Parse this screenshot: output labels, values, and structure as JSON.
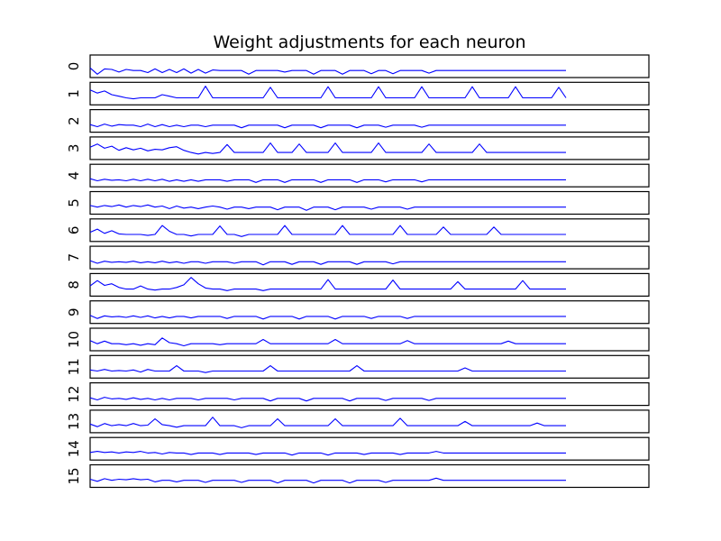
{
  "chart_data": {
    "type": "line",
    "title": "Weight adjustments for each neuron",
    "xlabel": "",
    "ylabel": "",
    "layout": "stacked small multiples",
    "grid": false,
    "line_color": "#0000ff",
    "x_range": [
      0,
      528
    ],
    "x_limit": [
      0,
      620
    ],
    "y_range": [
      -1,
      2.6
    ],
    "x": [
      0,
      8,
      16,
      24,
      32,
      40,
      48,
      56,
      64,
      72,
      80,
      88,
      96,
      104,
      112,
      120,
      128,
      136,
      144,
      152,
      160,
      168,
      176,
      184,
      192,
      200,
      208,
      216,
      224,
      232,
      240,
      248,
      256,
      264,
      272,
      280,
      288,
      296,
      304,
      312,
      320,
      328,
      336,
      344,
      352,
      360,
      368,
      376,
      384,
      392,
      400,
      408,
      416,
      424,
      432,
      440,
      448,
      456,
      464,
      472,
      480,
      488,
      496,
      504,
      512,
      520,
      528
    ],
    "series": [
      {
        "name": "0",
        "values": [
          0.5,
          -0.7,
          0.3,
          0.2,
          -0.3,
          0.2,
          0.0,
          0.0,
          -0.4,
          0.3,
          -0.4,
          0.2,
          -0.4,
          0.3,
          -0.5,
          0.2,
          -0.5,
          0.1,
          0.0,
          0.0,
          0.0,
          0.0,
          -0.7,
          0.0,
          0.0,
          0.0,
          0.0,
          -0.3,
          0.0,
          0.0,
          0.0,
          -0.7,
          0.0,
          0.0,
          0.0,
          -0.7,
          0.0,
          0.0,
          0.0,
          -0.6,
          0.0,
          0.0,
          -0.6,
          0.0,
          0.0,
          0.0,
          0.0,
          -0.5,
          0.0,
          0.0,
          0.0,
          0.0,
          0.0,
          0.0,
          0.0,
          0.0,
          0.0,
          0.0,
          0.0,
          0.0,
          0.0,
          0.0,
          0.0,
          0.0,
          0.0,
          0.0,
          0.0
        ]
      },
      {
        "name": "1",
        "values": [
          1.5,
          0.9,
          1.3,
          0.6,
          0.3,
          0.0,
          -0.2,
          0.0,
          0.0,
          0.0,
          0.6,
          0.3,
          0.0,
          0.0,
          0.0,
          0.0,
          2.2,
          0.0,
          0.0,
          0.0,
          0.0,
          0.0,
          0.0,
          0.0,
          0.0,
          2.0,
          0.0,
          0.0,
          0.0,
          0.0,
          0.0,
          0.0,
          0.0,
          2.1,
          0.0,
          0.0,
          0.0,
          0.0,
          0.0,
          0.0,
          2.1,
          0.0,
          0.0,
          0.0,
          0.0,
          0.0,
          2.1,
          0.0,
          0.0,
          0.0,
          0.0,
          0.0,
          0.0,
          2.1,
          0.0,
          0.0,
          0.0,
          0.0,
          0.0,
          2.1,
          0.0,
          0.0,
          0.0,
          0.0,
          0.0,
          2.0,
          0.0
        ]
      },
      {
        "name": "2",
        "values": [
          0.1,
          -0.3,
          0.2,
          -0.2,
          0.1,
          0.0,
          0.0,
          -0.3,
          0.2,
          -0.3,
          0.1,
          -0.3,
          0.0,
          -0.3,
          0.0,
          0.0,
          -0.3,
          0.0,
          0.0,
          0.0,
          0.0,
          -0.5,
          0.0,
          0.0,
          0.0,
          0.0,
          0.0,
          -0.5,
          0.0,
          0.0,
          0.0,
          0.0,
          -0.5,
          0.0,
          0.0,
          0.0,
          0.0,
          -0.5,
          0.0,
          0.0,
          0.0,
          -0.4,
          0.0,
          0.0,
          0.0,
          0.0,
          -0.4,
          0.0,
          0.0,
          0.0,
          0.0,
          0.0,
          0.0,
          0.0,
          0.0,
          0.0,
          0.0,
          0.0,
          0.0,
          0.0,
          0.0,
          0.0,
          0.0,
          0.0,
          0.0,
          0.0,
          0.0
        ]
      },
      {
        "name": "3",
        "values": [
          1.0,
          1.6,
          0.8,
          1.2,
          0.4,
          0.9,
          0.5,
          0.8,
          0.3,
          0.6,
          0.5,
          0.9,
          1.1,
          0.4,
          0.0,
          -0.3,
          0.0,
          -0.2,
          0.0,
          1.5,
          0.0,
          0.0,
          0.0,
          0.0,
          0.0,
          1.8,
          0.0,
          0.0,
          0.0,
          1.6,
          0.0,
          0.0,
          0.0,
          0.0,
          1.8,
          0.0,
          0.0,
          0.0,
          0.0,
          0.0,
          1.8,
          0.0,
          0.0,
          0.0,
          0.0,
          0.0,
          0.0,
          1.6,
          0.0,
          0.0,
          0.0,
          0.0,
          0.0,
          0.0,
          1.6,
          0.0,
          0.0,
          0.0,
          0.0,
          0.0,
          0.0,
          0.0,
          0.0,
          0.0,
          0.0,
          0.0,
          0.0
        ]
      },
      {
        "name": "4",
        "values": [
          0.2,
          -0.2,
          0.1,
          -0.1,
          0.0,
          -0.2,
          0.1,
          -0.2,
          0.1,
          -0.2,
          0.1,
          -0.3,
          0.0,
          -0.3,
          0.0,
          -0.3,
          0.0,
          0.0,
          0.0,
          -0.3,
          0.0,
          0.0,
          0.0,
          -0.5,
          0.0,
          0.0,
          0.0,
          -0.5,
          0.0,
          0.0,
          0.0,
          0.0,
          -0.5,
          0.0,
          0.0,
          0.0,
          0.0,
          -0.5,
          0.0,
          0.0,
          0.0,
          -0.4,
          0.0,
          0.0,
          0.0,
          0.0,
          -0.4,
          0.0,
          0.0,
          0.0,
          0.0,
          0.0,
          0.0,
          0.0,
          0.0,
          0.0,
          0.0,
          0.0,
          0.0,
          0.0,
          0.0,
          0.0,
          0.0,
          0.0,
          0.0,
          0.0,
          0.0
        ]
      },
      {
        "name": "5",
        "values": [
          0.3,
          0.0,
          0.3,
          0.1,
          0.4,
          0.0,
          0.3,
          0.1,
          0.4,
          0.0,
          0.2,
          -0.3,
          0.2,
          -0.2,
          0.0,
          -0.3,
          0.0,
          0.2,
          0.0,
          -0.4,
          0.0,
          0.0,
          -0.3,
          0.0,
          0.0,
          0.0,
          -0.5,
          0.0,
          0.0,
          0.0,
          -0.6,
          0.0,
          0.0,
          0.0,
          -0.5,
          0.0,
          0.0,
          0.0,
          0.0,
          -0.4,
          0.0,
          0.0,
          0.0,
          0.0,
          -0.4,
          0.0,
          0.0,
          0.0,
          0.0,
          0.0,
          0.0,
          0.0,
          0.0,
          0.0,
          0.0,
          0.0,
          0.0,
          0.0,
          0.0,
          0.0,
          0.0,
          0.0,
          0.0,
          0.0,
          0.0,
          0.0,
          0.0
        ]
      },
      {
        "name": "6",
        "values": [
          0.4,
          1.0,
          0.2,
          0.7,
          0.1,
          0.0,
          0.0,
          0.0,
          -0.2,
          0.0,
          1.7,
          0.6,
          0.0,
          0.0,
          -0.3,
          0.0,
          0.0,
          0.0,
          1.6,
          0.0,
          0.0,
          -0.4,
          0.0,
          0.0,
          0.0,
          0.0,
          0.0,
          1.7,
          0.0,
          0.0,
          0.0,
          0.0,
          0.0,
          0.0,
          0.0,
          1.7,
          0.0,
          0.0,
          0.0,
          0.0,
          0.0,
          0.0,
          0.0,
          1.7,
          0.0,
          0.0,
          0.0,
          0.0,
          0.0,
          1.4,
          0.0,
          0.0,
          0.0,
          0.0,
          0.0,
          0.0,
          1.4,
          0.0,
          0.0,
          0.0,
          0.0,
          0.0,
          0.0,
          0.0,
          0.0,
          0.0,
          0.0
        ]
      },
      {
        "name": "7",
        "values": [
          0.2,
          -0.3,
          0.1,
          -0.1,
          0.0,
          -0.1,
          0.1,
          -0.2,
          0.0,
          -0.2,
          0.1,
          -0.2,
          0.0,
          -0.3,
          0.0,
          0.0,
          -0.3,
          0.0,
          0.0,
          0.0,
          -0.3,
          0.0,
          0.0,
          0.0,
          -0.6,
          0.0,
          0.0,
          0.0,
          -0.5,
          0.0,
          0.0,
          0.0,
          -0.5,
          0.0,
          0.0,
          0.0,
          0.0,
          -0.5,
          0.0,
          0.0,
          0.0,
          0.0,
          -0.4,
          0.0,
          0.0,
          0.0,
          0.0,
          0.0,
          0.0,
          0.0,
          0.0,
          0.0,
          0.0,
          0.0,
          0.0,
          0.0,
          0.0,
          0.0,
          0.0,
          0.0,
          0.0,
          0.0,
          0.0,
          0.0,
          0.0,
          0.0,
          0.0
        ]
      },
      {
        "name": "8",
        "values": [
          0.6,
          1.6,
          0.7,
          1.0,
          0.3,
          0.0,
          0.0,
          0.6,
          0.0,
          -0.2,
          0.0,
          0.0,
          0.3,
          0.8,
          2.2,
          1.0,
          0.2,
          0.0,
          0.0,
          -0.3,
          0.0,
          0.0,
          0.0,
          0.0,
          -0.3,
          0.0,
          0.0,
          0.0,
          0.0,
          0.0,
          0.0,
          0.0,
          0.0,
          1.8,
          0.0,
          0.0,
          0.0,
          0.0,
          0.0,
          0.0,
          0.0,
          0.0,
          1.7,
          0.0,
          0.0,
          0.0,
          0.0,
          0.0,
          0.0,
          0.0,
          0.0,
          1.4,
          0.0,
          0.0,
          0.0,
          0.0,
          0.0,
          0.0,
          0.0,
          0.0,
          1.6,
          0.0,
          0.0,
          0.0,
          0.0,
          0.0,
          0.0
        ]
      },
      {
        "name": "9",
        "values": [
          0.2,
          -0.4,
          0.1,
          -0.1,
          0.0,
          -0.2,
          0.1,
          -0.2,
          0.1,
          -0.3,
          0.0,
          -0.3,
          0.0,
          0.0,
          -0.3,
          0.0,
          0.0,
          0.0,
          0.0,
          -0.4,
          0.0,
          0.0,
          0.0,
          0.0,
          -0.5,
          0.0,
          0.0,
          0.0,
          0.0,
          -0.5,
          0.0,
          0.0,
          0.0,
          0.0,
          -0.5,
          0.0,
          0.0,
          0.0,
          0.0,
          -0.4,
          0.0,
          0.0,
          0.0,
          0.0,
          -0.4,
          0.0,
          0.0,
          0.0,
          0.0,
          0.0,
          0.0,
          0.0,
          0.0,
          0.0,
          0.0,
          0.0,
          0.0,
          0.0,
          0.0,
          0.0,
          0.0,
          0.0,
          0.0,
          0.0,
          0.0,
          0.0,
          0.0
        ]
      },
      {
        "name": "10",
        "values": [
          0.6,
          0.0,
          0.5,
          0.0,
          0.0,
          -0.2,
          0.0,
          -0.3,
          0.0,
          -0.2,
          1.1,
          0.2,
          0.0,
          -0.4,
          0.0,
          0.0,
          0.0,
          0.0,
          -0.2,
          0.0,
          0.0,
          0.0,
          0.0,
          0.0,
          0.8,
          0.0,
          0.0,
          0.0,
          0.0,
          0.0,
          0.0,
          0.0,
          0.0,
          0.0,
          0.8,
          0.0,
          0.0,
          0.0,
          0.0,
          0.0,
          0.0,
          0.0,
          0.0,
          0.0,
          0.6,
          0.0,
          0.0,
          0.0,
          0.0,
          0.0,
          0.0,
          0.0,
          0.0,
          0.0,
          0.0,
          0.0,
          0.0,
          0.0,
          0.5,
          0.0,
          0.0,
          0.0,
          0.0,
          0.0,
          0.0,
          0.0,
          0.0
        ]
      },
      {
        "name": "11",
        "values": [
          0.2,
          0.0,
          0.3,
          0.0,
          0.1,
          0.0,
          0.2,
          -0.2,
          0.3,
          0.0,
          0.0,
          0.0,
          1.0,
          0.0,
          0.0,
          0.0,
          -0.3,
          0.0,
          0.0,
          0.0,
          0.0,
          0.0,
          0.0,
          0.0,
          0.0,
          1.0,
          0.0,
          0.0,
          0.0,
          0.0,
          0.0,
          0.0,
          0.0,
          0.0,
          0.0,
          0.0,
          0.0,
          1.0,
          0.0,
          0.0,
          0.0,
          0.0,
          0.0,
          0.0,
          0.0,
          0.0,
          0.0,
          0.0,
          0.0,
          0.0,
          0.0,
          0.0,
          0.6,
          0.0,
          0.0,
          0.0,
          0.0,
          0.0,
          0.0,
          0.0,
          0.0,
          0.0,
          0.0,
          0.0,
          0.0,
          0.0,
          0.0
        ]
      },
      {
        "name": "12",
        "values": [
          0.1,
          -0.3,
          0.2,
          -0.1,
          0.0,
          -0.2,
          0.1,
          -0.2,
          0.0,
          -0.3,
          0.0,
          -0.3,
          0.0,
          0.0,
          0.0,
          -0.3,
          0.0,
          0.0,
          0.0,
          0.0,
          -0.3,
          0.0,
          0.0,
          0.0,
          0.0,
          -0.5,
          0.0,
          0.0,
          0.0,
          0.0,
          -0.5,
          0.0,
          0.0,
          0.0,
          0.0,
          0.0,
          -0.5,
          0.0,
          0.0,
          0.0,
          0.0,
          -0.4,
          0.0,
          0.0,
          0.0,
          0.0,
          0.0,
          -0.4,
          0.0,
          0.0,
          0.0,
          0.0,
          0.0,
          0.0,
          0.0,
          0.0,
          0.0,
          0.0,
          0.0,
          0.0,
          0.0,
          0.0,
          0.0,
          0.0,
          0.0,
          0.0,
          0.0
        ]
      },
      {
        "name": "13",
        "values": [
          0.3,
          -0.2,
          0.4,
          0.0,
          0.2,
          0.0,
          0.4,
          0.0,
          0.1,
          1.3,
          0.2,
          0.0,
          -0.3,
          0.0,
          0.0,
          0.0,
          0.0,
          1.6,
          0.0,
          0.0,
          0.0,
          -0.4,
          0.0,
          0.0,
          0.0,
          0.0,
          1.3,
          0.0,
          0.0,
          0.0,
          0.0,
          0.0,
          0.0,
          0.0,
          1.3,
          0.0,
          0.0,
          0.0,
          0.0,
          0.0,
          0.0,
          0.0,
          0.0,
          1.4,
          0.0,
          0.0,
          0.0,
          0.0,
          0.0,
          0.0,
          0.0,
          0.0,
          0.8,
          0.0,
          0.0,
          0.0,
          0.0,
          0.0,
          0.0,
          0.0,
          0.0,
          0.0,
          0.5,
          0.0,
          0.0,
          0.0,
          0.0
        ]
      },
      {
        "name": "14",
        "values": [
          0.1,
          0.3,
          0.1,
          0.2,
          0.0,
          0.2,
          0.1,
          0.3,
          0.0,
          0.1,
          -0.2,
          0.1,
          0.0,
          0.0,
          -0.3,
          0.0,
          0.0,
          0.0,
          -0.3,
          0.0,
          0.0,
          0.0,
          0.0,
          -0.3,
          0.0,
          0.0,
          0.0,
          0.0,
          -0.4,
          0.0,
          0.0,
          0.0,
          0.0,
          -0.4,
          0.0,
          0.0,
          0.0,
          0.0,
          -0.3,
          0.0,
          0.0,
          0.0,
          0.0,
          -0.3,
          0.0,
          0.0,
          0.0,
          0.0,
          0.3,
          0.0,
          0.0,
          0.0,
          0.0,
          0.0,
          0.0,
          0.0,
          0.0,
          0.0,
          0.0,
          0.0,
          0.0,
          0.0,
          0.0,
          0.0,
          0.0,
          0.0,
          0.0
        ]
      },
      {
        "name": "15",
        "values": [
          0.2,
          -0.2,
          0.3,
          0.0,
          0.2,
          0.1,
          0.3,
          0.1,
          0.2,
          -0.3,
          0.0,
          0.0,
          -0.3,
          0.0,
          0.0,
          0.0,
          -0.4,
          0.0,
          0.0,
          0.0,
          0.0,
          -0.4,
          0.0,
          0.0,
          0.0,
          0.0,
          -0.5,
          0.0,
          0.0,
          0.0,
          0.0,
          -0.5,
          0.0,
          0.0,
          0.0,
          0.0,
          -0.5,
          0.0,
          0.0,
          0.0,
          0.0,
          -0.4,
          0.0,
          0.0,
          0.0,
          0.0,
          0.0,
          0.0,
          0.4,
          0.0,
          0.0,
          0.0,
          0.0,
          0.0,
          0.0,
          0.0,
          0.0,
          0.0,
          0.0,
          0.0,
          0.0,
          0.0,
          0.0,
          0.0,
          0.0,
          0.0,
          0.0
        ]
      }
    ]
  }
}
